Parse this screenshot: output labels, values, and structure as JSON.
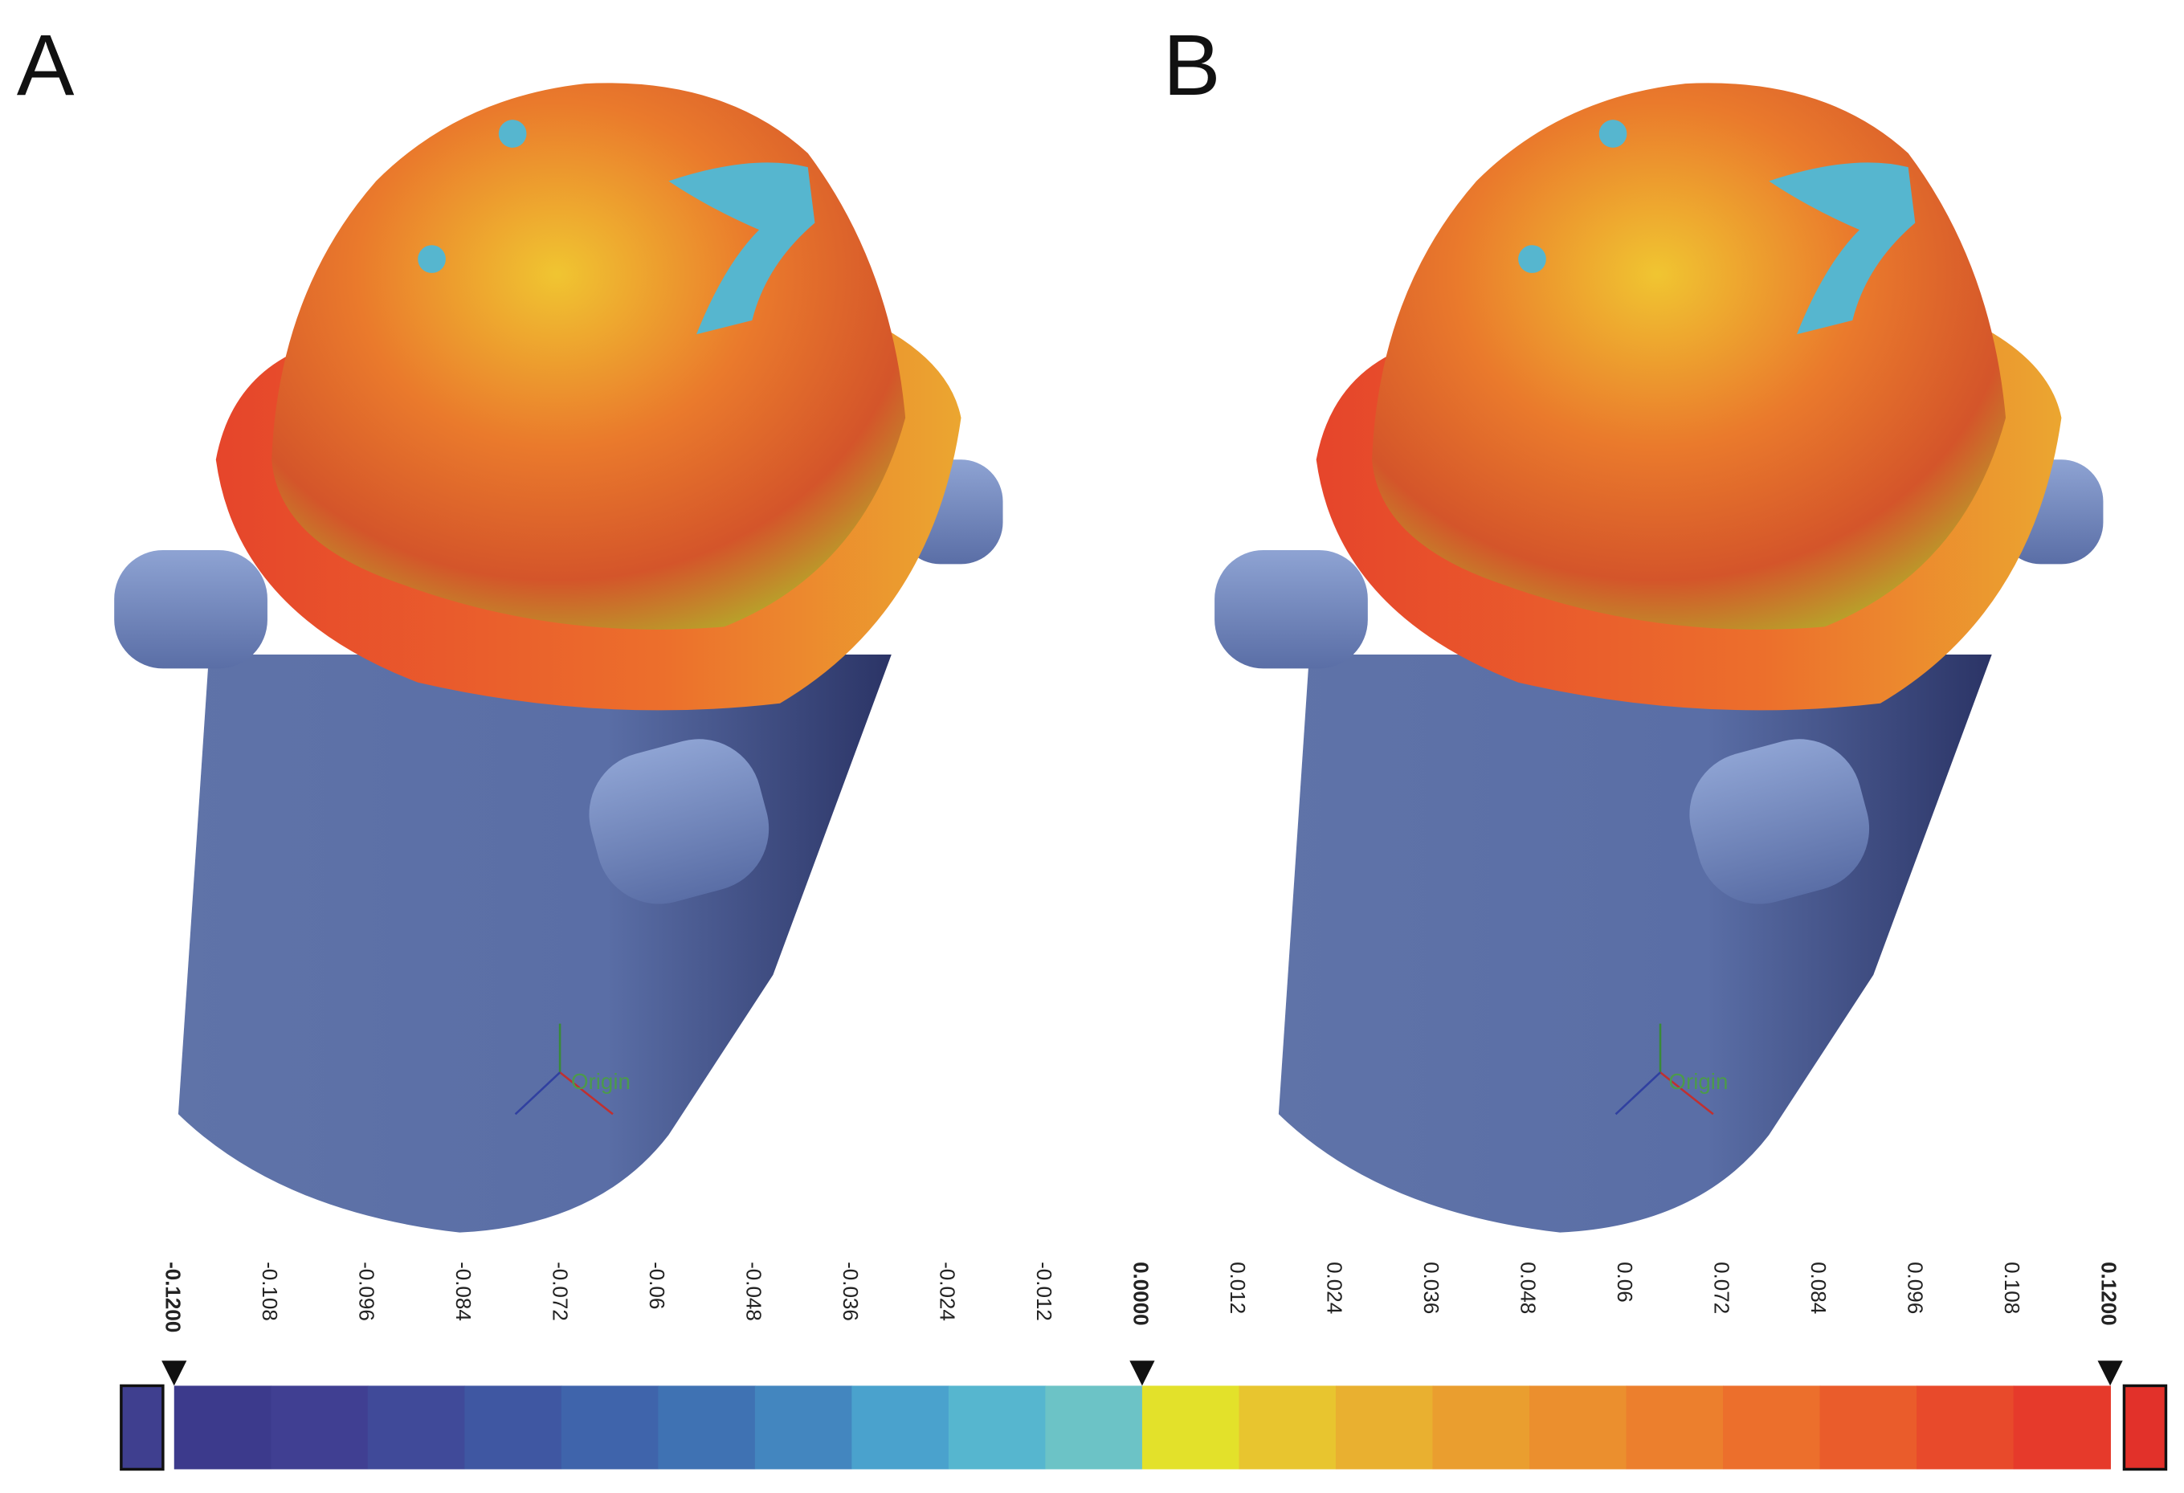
{
  "panels": [
    {
      "label": "A",
      "axis_label": "Origin"
    },
    {
      "label": "B",
      "axis_label": "Origin"
    }
  ],
  "colorbar": {
    "ticks": [
      "-0.1200",
      "-0.108",
      "-0.096",
      "-0.084",
      "-0.072",
      "-0.06",
      "-0.048",
      "-0.036",
      "-0.024",
      "-0.012",
      "0.0000",
      "0.012",
      "0.024",
      "0.036",
      "0.048",
      "0.06",
      "0.072",
      "0.084",
      "0.096",
      "0.108",
      "0.1200"
    ],
    "colors": [
      "#3c3a8c",
      "#403f92",
      "#404a99",
      "#3f57a2",
      "#3f64ab",
      "#3f72b3",
      "#4386bf",
      "#4aa2cd",
      "#56b6cf",
      "#6cc3c6",
      "#e3e12a",
      "#e8c52f",
      "#e9b030",
      "#ea9e2f",
      "#eb8f2e",
      "#ec7f2d",
      "#ec6f2c",
      "#ea5c2b",
      "#e84a2b",
      "#e63a2b"
    ],
    "under_color": "#3f3f8f",
    "over_color": "#e2312a"
  }
}
